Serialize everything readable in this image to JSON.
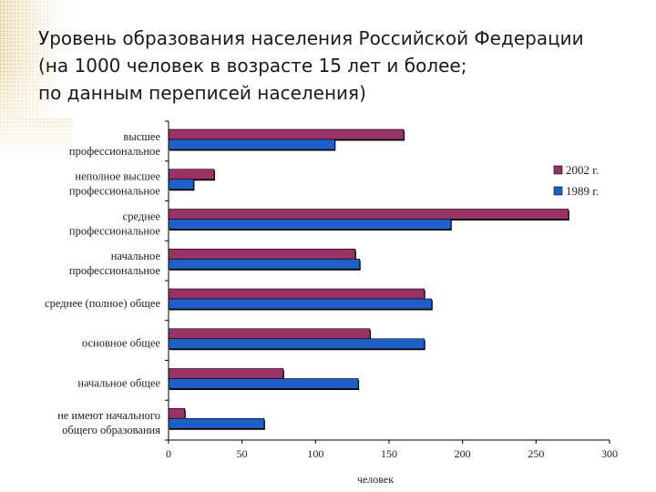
{
  "title_lines": [
    "Уровень образования населения Российской Федерации",
    "(на 1000 человек в возрасте 15 лет и более;",
    "по данным переписей населения)"
  ],
  "chart_data": {
    "type": "bar",
    "orientation": "horizontal",
    "categories": [
      [
        "высшее",
        "профессиональное"
      ],
      [
        "неполное высшее",
        "профессиональное"
      ],
      [
        "среднее",
        "профессиональное"
      ],
      [
        "начальное",
        "профессиональное"
      ],
      [
        "среднее (полное) общее"
      ],
      [
        "основное общее"
      ],
      [
        "начальное общее"
      ],
      [
        "не имеют начального",
        "общего образования"
      ]
    ],
    "series": [
      {
        "name": "2002 г.",
        "color": "#993366",
        "values": [
          160,
          31,
          272,
          127,
          174,
          137,
          78,
          11
        ]
      },
      {
        "name": "1989 г.",
        "color": "#1f5fc8",
        "values": [
          113,
          17,
          192,
          130,
          179,
          174,
          129,
          65
        ]
      }
    ],
    "xlabel": "человек",
    "xlim": [
      0,
      300
    ],
    "xticks": [
      0,
      50,
      100,
      150,
      200,
      250,
      300
    ],
    "legend_position": "right"
  }
}
